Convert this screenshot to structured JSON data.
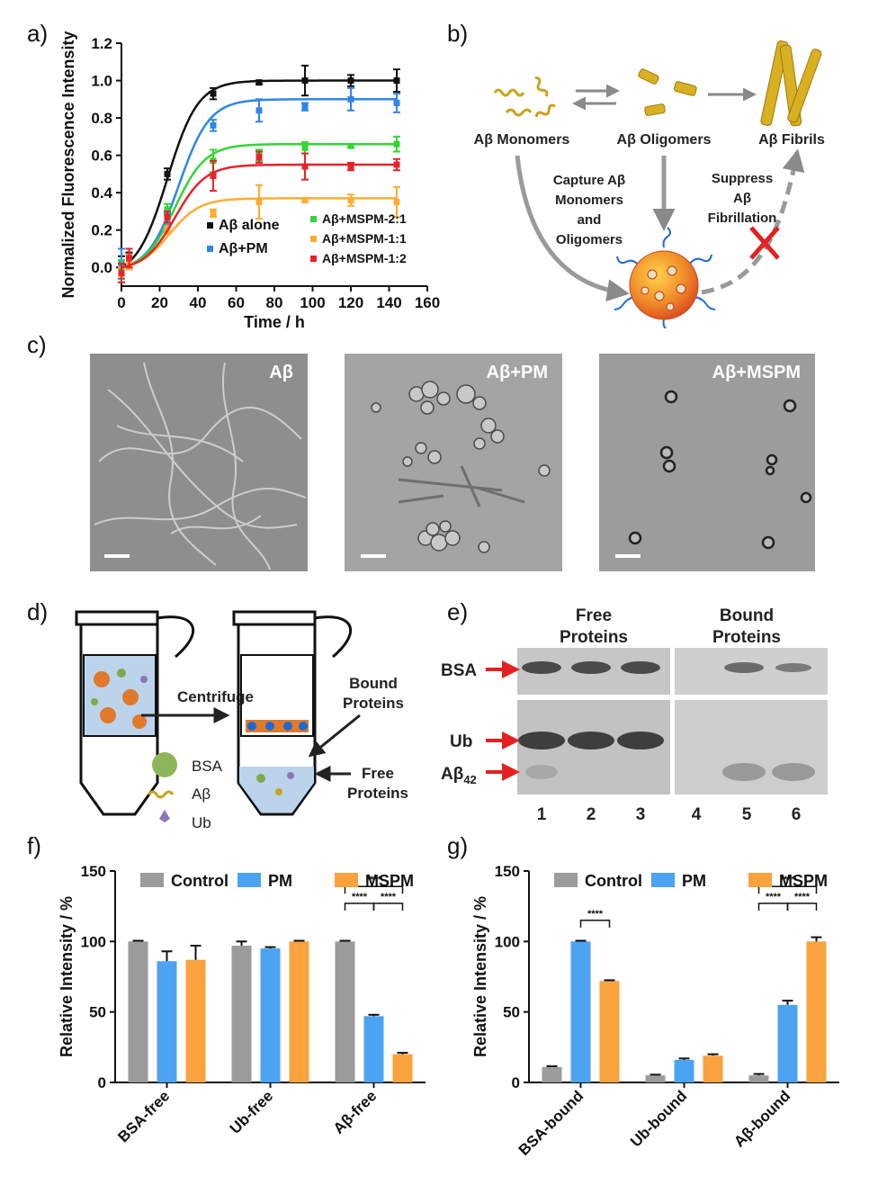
{
  "panels": {
    "a": "a)",
    "b": "b)",
    "c": "c)",
    "d": "d)",
    "e": "e)",
    "f": "f)",
    "g": "g)"
  },
  "colors": {
    "black": "#111111",
    "blue": "#2e86e6",
    "green": "#33d633",
    "orange": "#ffad33",
    "red": "#e8222b",
    "gray": "#9b9b9b",
    "bar_blue": "#4ba3f2",
    "bar_orange": "#f9a23e"
  },
  "chart_data": [
    {
      "type": "scatter",
      "panel": "a",
      "xlabel": "Time / h",
      "ylabel": "Normalized Fluorescence Intensity",
      "xlim": [
        0,
        160
      ],
      "ylim": [
        -0.1,
        1.2
      ],
      "xticks": [
        "0",
        "20",
        "40",
        "60",
        "80",
        "100",
        "120",
        "140",
        "160"
      ],
      "yticks": [
        "0.0",
        "0.2",
        "0.4",
        "0.6",
        "0.8",
        "1.0",
        "1.2"
      ],
      "x": [
        0,
        4,
        24,
        48,
        72,
        96,
        120,
        144
      ],
      "series": [
        {
          "name": "Aβ alone",
          "color": "#111111",
          "plateau": 1.0,
          "t50": 24,
          "values": [
            0.0,
            0.04,
            0.5,
            0.93,
            0.99,
            1.0,
            1.0,
            1.0
          ],
          "err": [
            0.06,
            0.04,
            0.03,
            0.03,
            0.01,
            0.08,
            0.03,
            0.06
          ]
        },
        {
          "name": "Aβ+PM",
          "color": "#2e86e6",
          "plateau": 0.9,
          "t50": 30,
          "values": [
            0.02,
            0.03,
            0.26,
            0.76,
            0.84,
            0.86,
            0.9,
            0.88
          ],
          "err": [
            0.08,
            0.04,
            0.03,
            0.03,
            0.06,
            0.02,
            0.06,
            0.05
          ]
        },
        {
          "name": "Aβ+MSPM-2:1",
          "color": "#33d633",
          "plateau": 0.66,
          "t50": 28,
          "values": [
            -0.02,
            0.05,
            0.31,
            0.57,
            0.6,
            0.64,
            0.65,
            0.66
          ],
          "err": [
            0.06,
            0.05,
            0.03,
            0.06,
            0.03,
            0.03,
            0.01,
            0.04
          ]
        },
        {
          "name": "Aβ+MSPM-1:1",
          "color": "#ffad33",
          "plateau": 0.37,
          "t50": 25,
          "values": [
            -0.04,
            0.03,
            0.2,
            0.29,
            0.35,
            0.36,
            0.36,
            0.35
          ],
          "err": [
            0.04,
            0.04,
            0.02,
            0.02,
            0.09,
            0.01,
            0.03,
            0.08
          ]
        },
        {
          "name": "Aβ+MSPM-1:2",
          "color": "#e8222b",
          "plateau": 0.55,
          "t50": 28,
          "values": [
            -0.03,
            0.05,
            0.27,
            0.49,
            0.59,
            0.54,
            0.54,
            0.55
          ],
          "err": [
            0.05,
            0.05,
            0.03,
            0.08,
            0.03,
            0.07,
            0.02,
            0.03
          ]
        }
      ]
    },
    {
      "type": "bar",
      "panel": "f",
      "ylabel": "Relative Intensity / %",
      "ylim": [
        0,
        150
      ],
      "yticks": [
        "0",
        "50",
        "100",
        "150"
      ],
      "categories": [
        "BSA-free",
        "Ub-free",
        "Aβ-free"
      ],
      "legend_position": "top",
      "series": [
        {
          "name": "Control",
          "color": "#9b9b9b",
          "values": [
            100,
            97,
            100
          ],
          "err": [
            0.5,
            3,
            0.5
          ]
        },
        {
          "name": "PM",
          "color": "#4ba3f2",
          "values": [
            86,
            95,
            47
          ],
          "err": [
            7,
            1,
            1
          ]
        },
        {
          "name": "MSPM",
          "color": "#f9a23e",
          "values": [
            87,
            100,
            20
          ],
          "err": [
            10,
            0.5,
            1
          ]
        }
      ],
      "significance": [
        {
          "category": 2,
          "from": 0,
          "to": 2,
          "label": "****",
          "level": 139
        },
        {
          "category": 2,
          "from": 0,
          "to": 1,
          "label": "****",
          "level": 127
        },
        {
          "category": 2,
          "from": 1,
          "to": 2,
          "label": "****",
          "level": 127
        }
      ]
    },
    {
      "type": "bar",
      "panel": "g",
      "ylabel": "Relative Intensity / %",
      "ylim": [
        0,
        150
      ],
      "yticks": [
        "0",
        "50",
        "100",
        "150"
      ],
      "categories": [
        "BSA-bound",
        "Ub-bound",
        "Aβ-bound"
      ],
      "legend_position": "top",
      "series": [
        {
          "name": "Control",
          "color": "#9b9b9b",
          "values": [
            11,
            5,
            5
          ],
          "err": [
            0.5,
            0.5,
            1
          ]
        },
        {
          "name": "PM",
          "color": "#4ba3f2",
          "values": [
            100,
            16,
            55
          ],
          "err": [
            0.5,
            1,
            3
          ]
        },
        {
          "name": "MSPM",
          "color": "#f9a23e",
          "values": [
            72,
            19,
            100
          ],
          "err": [
            0.5,
            1,
            3
          ]
        }
      ],
      "significance": [
        {
          "category": 0,
          "from": 1,
          "to": 2,
          "label": "****",
          "level": 115
        },
        {
          "category": 2,
          "from": 0,
          "to": 2,
          "label": "****",
          "level": 139
        },
        {
          "category": 2,
          "from": 0,
          "to": 1,
          "label": "****",
          "level": 127
        },
        {
          "category": 2,
          "from": 1,
          "to": 2,
          "label": "****",
          "level": 127
        }
      ]
    }
  ],
  "schematic_b": {
    "monomers": "Aβ Monomers",
    "oligomers": "Aβ Oligomers",
    "fibrils": "Aβ Fibrils",
    "capture": [
      "Capture Aβ",
      "Monomers",
      "and",
      "Oligomers"
    ],
    "suppress": [
      "Suppress",
      "Aβ",
      "Fibrillation"
    ]
  },
  "tem_c": {
    "images": [
      "Aβ",
      "Aβ+PM",
      "Aβ+MSPM"
    ]
  },
  "schematic_d": {
    "centrifuge": "Centrifuge",
    "bound": [
      "Bound",
      "Proteins"
    ],
    "free": [
      "Free",
      "Proteins"
    ],
    "legend": [
      "BSA",
      "Aβ",
      "Ub"
    ]
  },
  "gel_e": {
    "free_header": [
      "Free",
      "Proteins"
    ],
    "bound_header": [
      "Bound",
      "Proteins"
    ],
    "bands": [
      "BSA",
      "Ub",
      "Aβ"
    ],
    "ab_subscript": "42",
    "lanes": [
      "1",
      "2",
      "3",
      "4",
      "5",
      "6"
    ]
  }
}
